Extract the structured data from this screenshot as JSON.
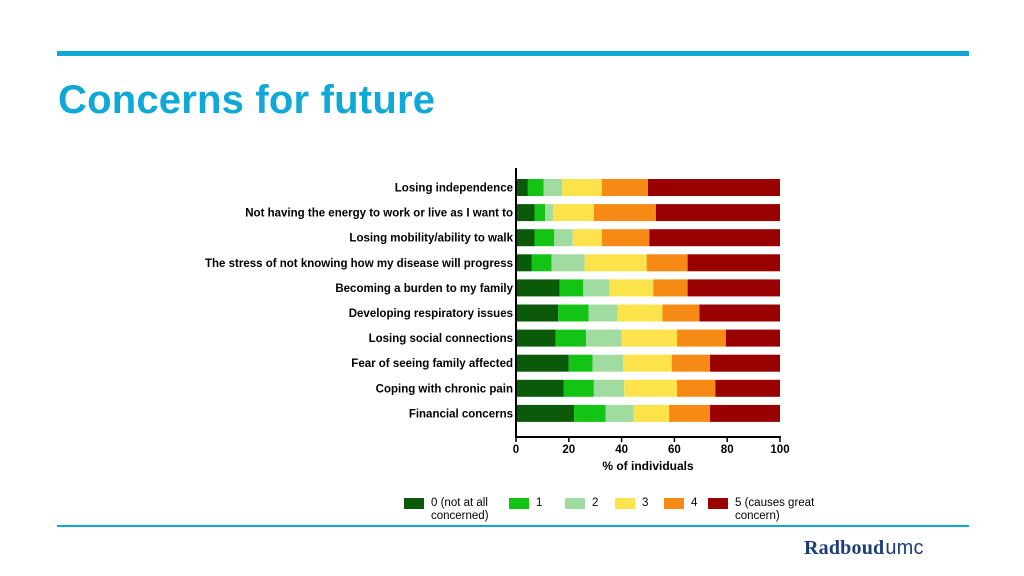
{
  "slide": {
    "title": "Concerns for future",
    "logo_primary": "Radboud",
    "logo_secondary": "umc",
    "accent_color": "#10a8d6",
    "logo_color": "#1b3e78"
  },
  "chart_data": {
    "type": "bar",
    "orientation": "horizontal",
    "stacked": true,
    "xlabel": "% of individuals",
    "xlim": [
      0,
      100
    ],
    "xticks": [
      "0",
      "20",
      "40",
      "60",
      "80",
      "100"
    ],
    "categories": [
      "Losing independence",
      "Not having the energy to work or live as I want to",
      "Losing mobility/ability to walk",
      "The stress of not knowing how my disease will progress",
      "Becoming a burden to my family",
      "Developing respiratory issues",
      "Losing social connections",
      "Fear of seeing family affected",
      "Coping with chronic pain",
      "Financial concerns"
    ],
    "series": [
      {
        "name": "0 (not at all concerned)",
        "legend_lines": [
          "0 (not at all",
          "concerned)"
        ],
        "color": "#0a5a0a",
        "values": [
          4.5,
          7,
          7,
          6,
          16.5,
          16,
          15,
          20,
          18,
          22
        ]
      },
      {
        "name": "1",
        "legend_lines": [
          "1"
        ],
        "color": "#14c414",
        "values": [
          6,
          4,
          7.5,
          7.5,
          9,
          11.5,
          11.5,
          9,
          11.5,
          12
        ]
      },
      {
        "name": "2",
        "legend_lines": [
          "2"
        ],
        "color": "#a0dca0",
        "values": [
          7,
          3,
          7,
          12.5,
          10,
          11,
          13.5,
          11.5,
          11.5,
          10.5
        ]
      },
      {
        "name": "3",
        "legend_lines": [
          "3"
        ],
        "color": "#fce34c",
        "values": [
          15,
          15.5,
          11,
          23.5,
          16.5,
          17,
          21,
          18.5,
          20,
          13.5
        ]
      },
      {
        "name": "4",
        "legend_lines": [
          "4"
        ],
        "color": "#f58a14",
        "values": [
          17.5,
          23.5,
          18,
          15.5,
          13,
          14,
          18.5,
          14.5,
          14.5,
          15.5
        ]
      },
      {
        "name": "5 (causes great concern)",
        "legend_lines": [
          "5 (causes great",
          "concern)"
        ],
        "color": "#990000",
        "values": [
          50,
          47,
          49.5,
          35,
          35,
          30.5,
          20.5,
          26.5,
          24.5,
          26.5
        ]
      }
    ],
    "legend_position": "bottom",
    "grid": false
  }
}
